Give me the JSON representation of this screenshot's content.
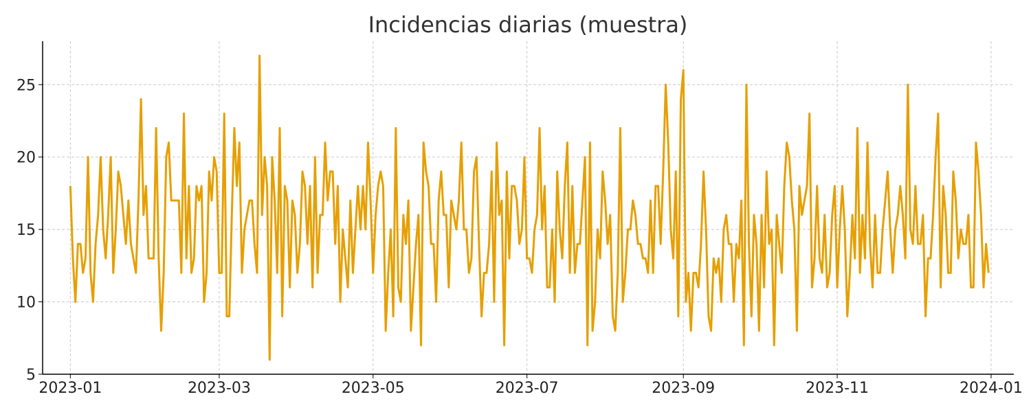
{
  "chart_data": {
    "type": "line",
    "title": "Incidencias diarias (muestra)",
    "xlabel": "",
    "ylabel": "",
    "x_start": "2023-01-01",
    "x_end": "2023-12-31",
    "xlim": [
      "2022-12-21",
      "2024-01-10"
    ],
    "ylim": [
      5,
      28
    ],
    "x_ticks": [
      "2023-01-01",
      "2023-03-01",
      "2023-05-01",
      "2023-07-01",
      "2023-09-01",
      "2023-11-01",
      "2024-01-01"
    ],
    "x_tick_labels": [
      "2023-01",
      "2023-03",
      "2023-05",
      "2023-07",
      "2023-09",
      "2023-11",
      "2024-01"
    ],
    "y_ticks": [
      5,
      10,
      15,
      20,
      25
    ],
    "y_tick_labels": [
      "5",
      "10",
      "15",
      "20",
      "25"
    ],
    "grid": true,
    "legend": "none",
    "colors": {
      "series": "#E69F00",
      "axis": "#000000",
      "grid": "#C8C8C8"
    },
    "series": [
      {
        "name": "",
        "values": [
          18,
          13,
          10,
          14,
          14,
          12,
          13,
          20,
          12,
          10,
          14,
          16,
          20,
          15,
          13,
          16,
          20,
          12,
          15,
          19,
          18,
          16,
          14,
          17,
          14,
          13,
          12,
          17,
          24,
          16,
          18,
          13,
          13,
          13,
          22,
          13,
          8,
          12,
          20,
          21,
          17,
          17,
          17,
          17,
          12,
          23,
          13,
          18,
          12,
          13,
          18,
          17,
          18,
          10,
          12,
          19,
          17,
          20,
          19,
          12,
          12,
          23,
          9,
          9,
          16,
          22,
          18,
          21,
          12,
          15,
          16,
          17,
          17,
          14,
          12,
          27,
          16,
          20,
          18,
          6,
          20,
          17,
          12,
          22,
          9,
          18,
          17,
          11,
          17,
          16,
          12,
          14,
          19,
          18,
          14,
          18,
          11,
          20,
          12,
          16,
          16,
          21,
          17,
          19,
          19,
          14,
          18,
          10,
          15,
          13,
          11,
          17,
          12,
          15,
          18,
          15,
          18,
          15,
          21,
          17,
          12,
          16,
          18,
          19,
          18,
          8,
          12,
          15,
          9,
          22,
          11,
          10,
          16,
          14,
          17,
          8,
          11,
          14,
          16,
          7,
          21,
          19,
          18,
          14,
          14,
          10,
          17,
          19,
          16,
          16,
          11,
          17,
          16,
          15,
          17,
          21,
          15,
          15,
          12,
          13,
          19,
          20,
          14,
          9,
          12,
          12,
          14,
          19,
          10,
          21,
          16,
          17,
          7,
          19,
          13,
          18,
          18,
          17,
          14,
          15,
          20,
          13,
          13,
          12,
          15,
          16,
          22,
          15,
          18,
          11,
          11,
          15,
          10,
          19,
          15,
          13,
          18,
          21,
          12,
          18,
          12,
          14,
          14,
          17,
          20,
          7,
          21,
          8,
          10,
          15,
          13,
          19,
          17,
          14,
          16,
          9,
          8,
          12,
          22,
          10,
          12,
          15,
          15,
          17,
          16,
          14,
          14,
          13,
          13,
          12,
          17,
          12,
          18,
          18,
          14,
          19,
          25,
          21,
          15,
          13,
          19,
          9,
          24,
          26,
          10,
          12,
          8,
          12,
          12,
          11,
          14,
          19,
          15,
          9,
          8,
          13,
          12,
          13,
          10,
          15,
          16,
          14,
          14,
          10,
          14,
          13,
          17,
          7,
          25,
          14,
          9,
          16,
          14,
          8,
          16,
          11,
          19,
          14,
          15,
          7,
          16,
          14,
          12,
          18,
          21,
          20,
          17,
          15,
          8,
          18,
          16,
          17,
          18,
          23,
          11,
          13,
          18,
          13,
          12,
          16,
          11,
          12,
          16,
          18,
          11,
          15,
          18,
          15,
          9,
          12,
          16,
          13,
          22,
          12,
          16,
          13,
          21,
          14,
          11,
          16,
          12,
          12,
          15,
          17,
          19,
          15,
          12,
          15,
          16,
          18,
          16,
          13,
          25,
          15,
          14,
          18,
          14,
          14,
          16,
          9,
          13,
          13,
          16,
          20,
          23,
          11,
          18,
          16,
          12,
          12,
          19,
          17,
          13,
          15,
          14,
          14,
          16,
          11,
          11,
          21,
          19,
          16,
          11,
          14,
          12
        ]
      }
    ]
  }
}
